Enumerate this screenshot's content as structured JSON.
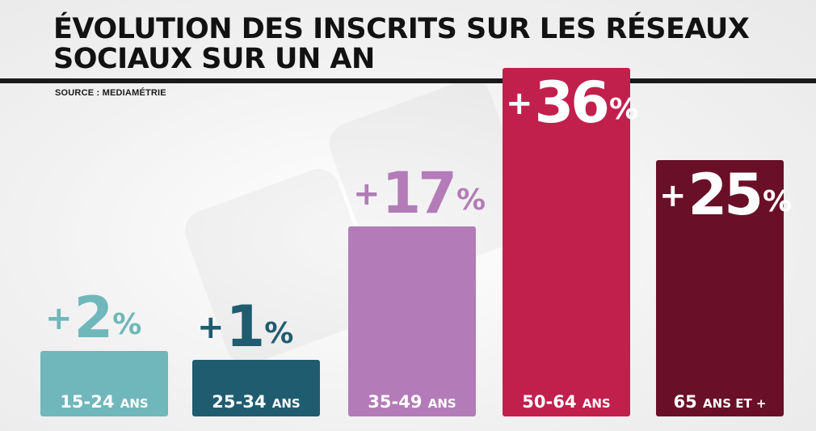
{
  "header": {
    "title": "ÉVOLUTION DES INSCRITS SUR LES RÉSEAUX SOCIAUX SUR UN AN",
    "source": "SOURCE : MEDIAMÉTRIE"
  },
  "colors": {
    "background": "#f3f3f3",
    "title": "#121212",
    "bar_15_24": "#6fb7bb",
    "bar_25_34": "#1f5c70",
    "bar_35_49": "#b37bb8",
    "bar_50_64": "#c1204c",
    "bar_65_plus": "#6a0f28"
  },
  "chart_data": {
    "type": "bar",
    "categories": [
      "15-24 ANS",
      "25-34 ANS",
      "35-49 ANS",
      "50-64 ANS",
      "65 ANS ET +"
    ],
    "values": [
      2,
      1,
      17,
      36,
      25
    ],
    "value_labels": [
      {
        "plus": "+",
        "number": "2",
        "unit": "%"
      },
      {
        "plus": "+",
        "number": "1",
        "unit": "%"
      },
      {
        "plus": "+",
        "number": "17",
        "unit": "%"
      },
      {
        "plus": "+",
        "number": "36",
        "unit": "%"
      },
      {
        "plus": "+",
        "number": "25",
        "unit": "%"
      }
    ],
    "category_labels": [
      {
        "main": "15-24",
        "small": "ANS"
      },
      {
        "main": "25-34",
        "small": "ANS"
      },
      {
        "main": "35-49",
        "small": "ANS"
      },
      {
        "main": "50-64",
        "small": "ANS"
      },
      {
        "main": "65",
        "small": "ANS ET +"
      }
    ],
    "unit": "%",
    "title": "ÉVOLUTION DES INSCRITS SUR LES RÉSEAUX SOCIAUX SUR UN AN",
    "xlabel": "",
    "ylabel": "",
    "ylim": [
      0,
      40
    ],
    "grid": false,
    "legend": "none"
  }
}
